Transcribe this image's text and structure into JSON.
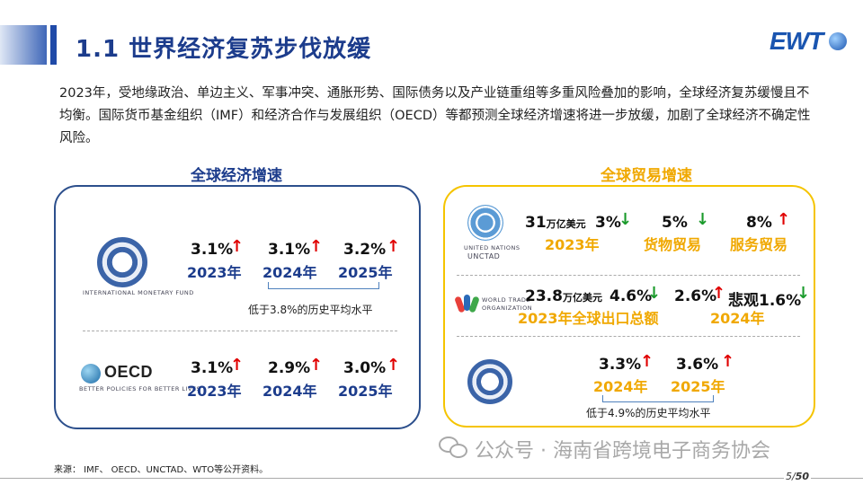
{
  "header": {
    "title": "1.1 世界经济复苏步伐放缓",
    "logo_text": "EWT"
  },
  "intro": "2023年，受地缘政治、单边主义、军事冲突、通胀形势、国际债务以及产业链重组等多重风险叠加的影响，全球经济复苏缓慢且不均衡。国际货币基金组织（IMF）和经济合作与发展组织（OECD）等都预测全球经济增速将进一步放缓，加剧了全球经济不确定性风险。",
  "left_panel": {
    "title": "全球经济增速",
    "rows": [
      {
        "org": "IMF",
        "org_caption": "INTERNATIONAL MONETARY FUND",
        "items": [
          {
            "value": "3.1%",
            "trend": "up",
            "year": "2023年"
          },
          {
            "value": "3.1%",
            "trend": "up",
            "year": "2024年"
          },
          {
            "value": "3.2%",
            "trend": "up",
            "year": "2025年"
          }
        ],
        "note": "低于3.8%的历史平均水平"
      },
      {
        "org": "OECD",
        "org_caption": "BETTER POLICIES FOR BETTER LIVES",
        "items": [
          {
            "value": "3.1%",
            "trend": "up",
            "year": "2023年"
          },
          {
            "value": "2.9%",
            "trend": "up",
            "year": "2024年"
          },
          {
            "value": "3.0%",
            "trend": "up",
            "year": "2025年"
          }
        ]
      }
    ]
  },
  "right_panel": {
    "title": "全球贸易增速",
    "unctad": {
      "caption1": "UNITED NATIONS",
      "caption2": "UNCTAD",
      "amount": "31",
      "unit": "万亿美元",
      "rate": "3%",
      "year": "2023年",
      "goods_rate": "5%",
      "goods_label": "货物贸易",
      "service_rate": "8%",
      "service_label": "服务贸易"
    },
    "wto": {
      "caption1": "WORLD TRADE",
      "caption2": "ORGANIZATION",
      "amount": "23.8",
      "unit": "万亿美元",
      "rate": "4.6%",
      "label": "2023年全球出口总额",
      "rate2": "2.6%",
      "pessimistic_label": "悲观",
      "pessimistic_rate": "1.6%",
      "year": "2024年"
    },
    "imf": {
      "rate_2024": "3.3%",
      "year_2024": "2024年",
      "rate_2025": "3.6%",
      "year_2025": "2025年",
      "note": "低于4.9%的历史平均水平"
    }
  },
  "footer": {
    "source": "来源： IMF、 OECD、UNCTAD、WTO等公开资料。",
    "watermark": "公众号 · 海南省跨境电子商务协会",
    "page_current": "5",
    "page_total": "50"
  },
  "arrows": {
    "up": "↑",
    "down": "↓"
  },
  "colors": {
    "title_blue": "#1c3c8c",
    "gold": "#f0a800",
    "up": "#e00000",
    "down": "#1a9a2b"
  }
}
